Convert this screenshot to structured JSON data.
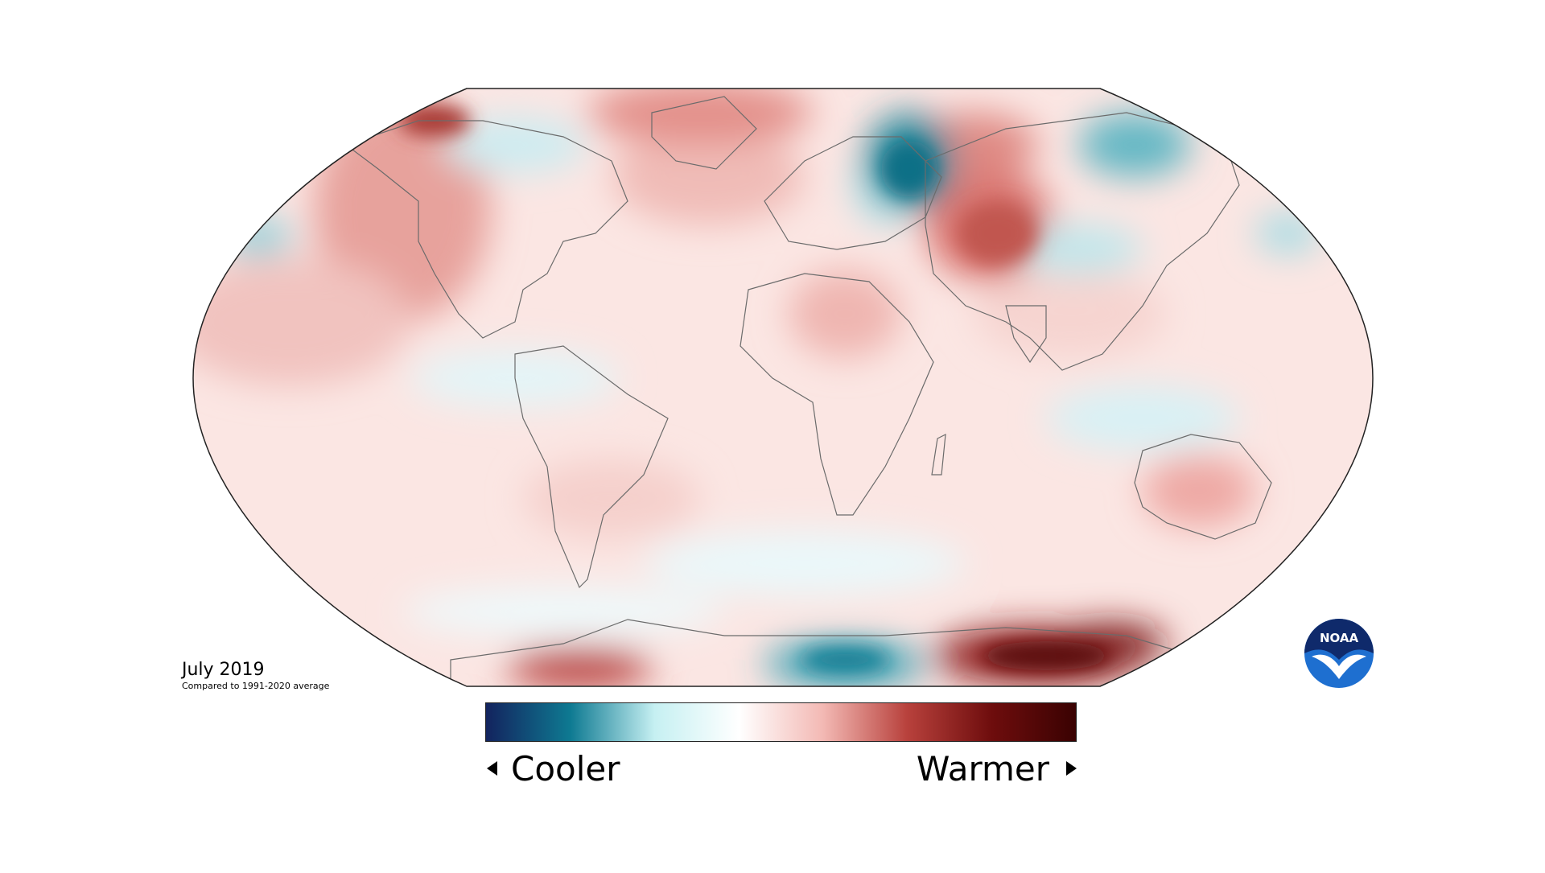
{
  "title": "July 2019",
  "subtitle": "Compared to 1991-2020 average",
  "legend": {
    "low_label": "Cooler",
    "high_label": "Warmer",
    "colors": [
      "#13235e",
      "#0e7a92",
      "#c6f0f2",
      "#ffffff",
      "#f3b9b4",
      "#b8413c",
      "#6e0d0d",
      "#3a0202"
    ]
  },
  "logo": {
    "text": "NOAA",
    "icon": "noaa-logo-icon"
  },
  "map": {
    "projection": "robinson",
    "anomaly_patches": [
      {
        "region": "Siberia (west)",
        "sign": "cool",
        "strength": 0.9
      },
      {
        "region": "Northeast Russia",
        "sign": "cool",
        "strength": 0.6
      },
      {
        "region": "Kazakhstan / Central Asia",
        "sign": "warm",
        "strength": 0.7
      },
      {
        "region": "Alaska / Gulf of Alaska",
        "sign": "warm",
        "strength": 0.75
      },
      {
        "region": "North Pacific",
        "sign": "warm",
        "strength": 0.45
      },
      {
        "region": "Greenland",
        "sign": "warm",
        "strength": 0.4
      },
      {
        "region": "Antarctica east",
        "sign": "warm",
        "strength": 0.95
      },
      {
        "region": "Antarctica west",
        "sign": "warm",
        "strength": 0.7
      },
      {
        "region": "Antarctica central",
        "sign": "cool",
        "strength": 0.7
      },
      {
        "region": "Australia",
        "sign": "warm",
        "strength": 0.5
      },
      {
        "region": "South Atlantic / Pacific",
        "sign": "cool",
        "strength": 0.15
      }
    ]
  }
}
